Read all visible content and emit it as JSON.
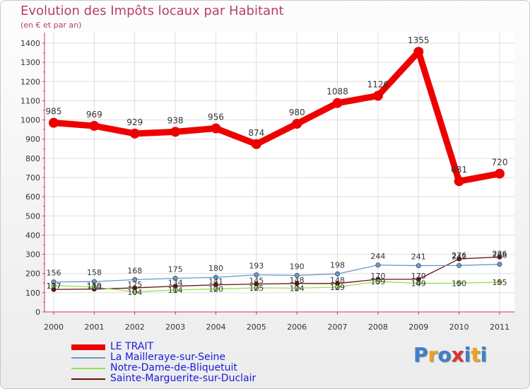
{
  "chart_data": {
    "type": "line",
    "title": "Evolution des Impôts locaux par Habitant",
    "subtitle": "(en € et par an)",
    "xlabel": "",
    "ylabel": "",
    "ylim": [
      0,
      1400
    ],
    "yticks": [
      0,
      100,
      200,
      300,
      400,
      500,
      600,
      700,
      800,
      900,
      1000,
      1100,
      1200,
      1300,
      1400
    ],
    "categories": [
      "2000",
      "2001",
      "2002",
      "2003",
      "2004",
      "2005",
      "2006",
      "2007",
      "2008",
      "2009",
      "2010",
      "2011"
    ],
    "series": [
      {
        "name": "LE TRAIT",
        "color": "#ee0000",
        "values": [
          985,
          969,
          929,
          938,
          956,
          874,
          980,
          1088,
          1126,
          1355,
          681,
          720
        ],
        "labels": [
          "985",
          "969",
          "929",
          "938",
          "956",
          "874",
          "980",
          "1088",
          "1126",
          "1355",
          "681",
          "720"
        ]
      },
      {
        "name": "La Mailleraye-sur-Seine",
        "color": "#6699cc",
        "values": [
          156,
          158,
          168,
          175,
          180,
          193,
          190,
          198,
          244,
          241,
          242,
          248
        ],
        "labels": [
          "156",
          "158",
          "168",
          "175",
          "180",
          "193",
          "190",
          "198",
          "244",
          "241",
          "242",
          "248"
        ]
      },
      {
        "name": "Notre-Dame-de-Bliquetuit",
        "color": "#99dd55",
        "values": [
          137,
          130,
          104,
          114,
          120,
          125,
          124,
          129,
          159,
          149,
          150,
          155
        ],
        "labels": [
          "137",
          "130",
          "104",
          "114",
          "120",
          "125",
          "124",
          "129",
          "159",
          "149",
          "150",
          "155"
        ]
      },
      {
        "name": "Sainte-Marguerite-sur-Duclair",
        "color": "#661111",
        "values": [
          117,
          119,
          125,
          134,
          141,
          145,
          148,
          148,
          170,
          170,
          276,
          286
        ],
        "labels": [
          "117",
          "119",
          "125",
          "134",
          "141",
          "145",
          "148",
          "148",
          "170",
          "170",
          "276",
          "286"
        ]
      }
    ],
    "legend_position": "bottom-left"
  },
  "brand": {
    "letters": [
      "P",
      "r",
      "o",
      "x",
      "i",
      "t",
      "i"
    ],
    "colors": [
      "#3d7fd0",
      "#f0a020",
      "#3d7fd0",
      "#e03030",
      "#3d7fd0",
      "#f0a020",
      "#3d7fd0"
    ]
  }
}
